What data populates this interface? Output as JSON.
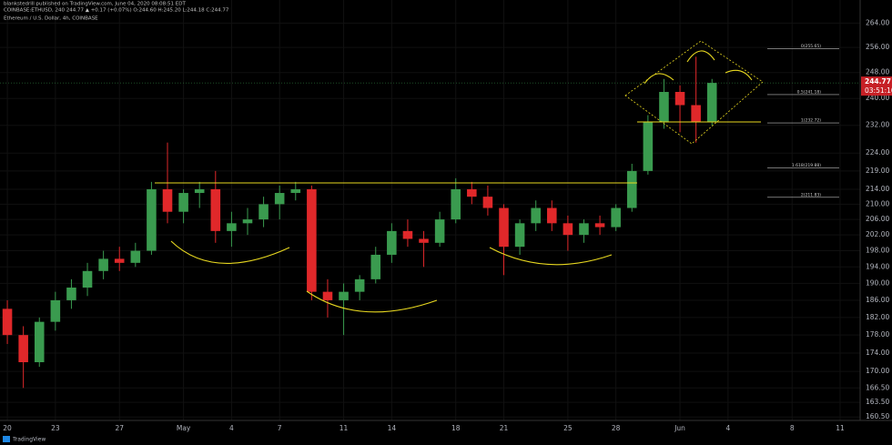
{
  "chart_data": {
    "type": "candlestick",
    "published": "blankstedrill published on TradingView.com, June 04, 2020 08:08:51 EDT",
    "ticker_line": "COINBASE:ETHUSD, 240  244.77 ▲ +0.17 (+0.07%)  O:244.60 H:245.20 L:244.18 C:244.77",
    "title": "Ethereum / U.S. Dollar, 4h, COINBASE",
    "brand": "TradingView",
    "countdown": "03:51:10",
    "last_price": 244.77,
    "up_color": "#3a9b4f",
    "down_color": "#e0282a",
    "log_scale": true,
    "grid": true,
    "x": [
      "2020-04-20",
      "2020-04-21",
      "2020-04-22",
      "2020-04-23",
      "2020-04-24",
      "2020-04-25",
      "2020-04-26",
      "2020-04-27",
      "2020-04-28",
      "2020-04-29",
      "2020-04-30",
      "2020-05-01",
      "2020-05-02",
      "2020-05-03",
      "2020-05-04",
      "2020-05-05",
      "2020-05-06",
      "2020-05-07",
      "2020-05-08",
      "2020-05-09",
      "2020-05-10",
      "2020-05-11",
      "2020-05-12",
      "2020-05-13",
      "2020-05-14",
      "2020-05-15",
      "2020-05-16",
      "2020-05-17",
      "2020-05-18",
      "2020-05-19",
      "2020-05-20",
      "2020-05-21",
      "2020-05-22",
      "2020-05-23",
      "2020-05-24",
      "2020-05-25",
      "2020-05-26",
      "2020-05-27",
      "2020-05-28",
      "2020-05-29",
      "2020-05-30",
      "2020-05-31",
      "2020-06-01",
      "2020-06-02",
      "2020-06-03"
    ],
    "open": [
      184,
      178,
      172,
      181,
      186,
      189,
      193,
      196,
      195,
      198,
      214,
      208,
      213,
      214,
      203,
      205,
      206,
      210,
      213,
      214,
      188,
      186,
      188,
      191,
      197,
      203,
      201,
      200,
      206,
      214,
      212,
      209,
      199,
      205,
      209,
      205,
      202,
      205,
      204,
      209,
      219,
      233,
      242,
      238,
      233
    ],
    "high": [
      186,
      180,
      182,
      188,
      191,
      195,
      198,
      199,
      200,
      216,
      227,
      214,
      216,
      219,
      208,
      209,
      212,
      215,
      216,
      215,
      191,
      190,
      192,
      199,
      205,
      206,
      203,
      208,
      217,
      216,
      215,
      210,
      206,
      211,
      211,
      207,
      206,
      207,
      210,
      221,
      235,
      246,
      244,
      253,
      246
    ],
    "low": [
      176,
      166.5,
      171,
      179,
      184,
      187,
      191,
      193,
      194,
      197,
      205,
      205,
      209,
      200,
      199,
      202,
      204,
      206,
      211,
      186,
      182,
      178,
      186,
      190,
      195,
      199,
      194,
      199,
      205,
      210,
      207,
      192,
      197,
      203,
      203,
      198,
      200,
      202,
      203,
      208,
      218,
      231,
      230,
      227,
      232
    ],
    "close": [
      178,
      172,
      181,
      186,
      189,
      193,
      196,
      195,
      198,
      214,
      208,
      213,
      214,
      203,
      205,
      206,
      210,
      213,
      214,
      188,
      186,
      188,
      191,
      197,
      203,
      201,
      200,
      206,
      214,
      212,
      209,
      199,
      205,
      209,
      205,
      202,
      205,
      204,
      209,
      219,
      233,
      242,
      238,
      233,
      244.77
    ],
    "xlim": [
      "2020-04-19T13:00",
      "2020-06-12T06:00"
    ],
    "xticks": [
      {
        "value": "2020-04-20",
        "label": "20"
      },
      {
        "value": "2020-04-23",
        "label": "23"
      },
      {
        "value": "2020-04-27",
        "label": "27"
      },
      {
        "value": "2020-05-01",
        "label": "May"
      },
      {
        "value": "2020-05-04",
        "label": "4"
      },
      {
        "value": "2020-05-07",
        "label": "7"
      },
      {
        "value": "2020-05-11",
        "label": "11"
      },
      {
        "value": "2020-05-14",
        "label": "14"
      },
      {
        "value": "2020-05-18",
        "label": "18"
      },
      {
        "value": "2020-05-21",
        "label": "21"
      },
      {
        "value": "2020-05-25",
        "label": "25"
      },
      {
        "value": "2020-05-28",
        "label": "28"
      },
      {
        "value": "2020-06-01",
        "label": "Jun"
      },
      {
        "value": "2020-06-04",
        "label": "4"
      },
      {
        "value": "2020-06-08",
        "label": "8"
      },
      {
        "value": "2020-06-11",
        "label": "11"
      }
    ],
    "ylim": [
      159.8,
      271.8
    ],
    "yticks": [
      {
        "value": 264,
        "label": "264.00"
      },
      {
        "value": 256,
        "label": "256.00"
      },
      {
        "value": 248,
        "label": "248.00"
      },
      {
        "value": 240,
        "label": "240.00"
      },
      {
        "value": 232,
        "label": "232.00"
      },
      {
        "value": 224,
        "label": "224.00"
      },
      {
        "value": 219,
        "label": "219.00"
      },
      {
        "value": 214,
        "label": "214.00"
      },
      {
        "value": 210,
        "label": "210.00"
      },
      {
        "value": 206,
        "label": "206.00"
      },
      {
        "value": 202,
        "label": "202.00"
      },
      {
        "value": 198,
        "label": "198.00"
      },
      {
        "value": 194,
        "label": "194.00"
      },
      {
        "value": 190,
        "label": "190.00"
      },
      {
        "value": 186,
        "label": "186.00"
      },
      {
        "value": 182,
        "label": "182.00"
      },
      {
        "value": 178,
        "label": "178.00"
      },
      {
        "value": 174,
        "label": "174.00"
      },
      {
        "value": 170,
        "label": "170.00"
      },
      {
        "value": 166.5,
        "label": "166.50"
      },
      {
        "value": 163.5,
        "label": "163.50"
      },
      {
        "value": 160.5,
        "label": "160.50"
      }
    ],
    "fib_levels": [
      {
        "value": 255.65,
        "label": "0(255.65)"
      },
      {
        "value": 241.18,
        "label": "0.5(241.18)"
      },
      {
        "value": 232.72,
        "label": "1(232.72)"
      },
      {
        "value": 219.88,
        "label": "1.618(219.88)"
      },
      {
        "value": 211.83,
        "label": "2(211.83)"
      }
    ]
  }
}
